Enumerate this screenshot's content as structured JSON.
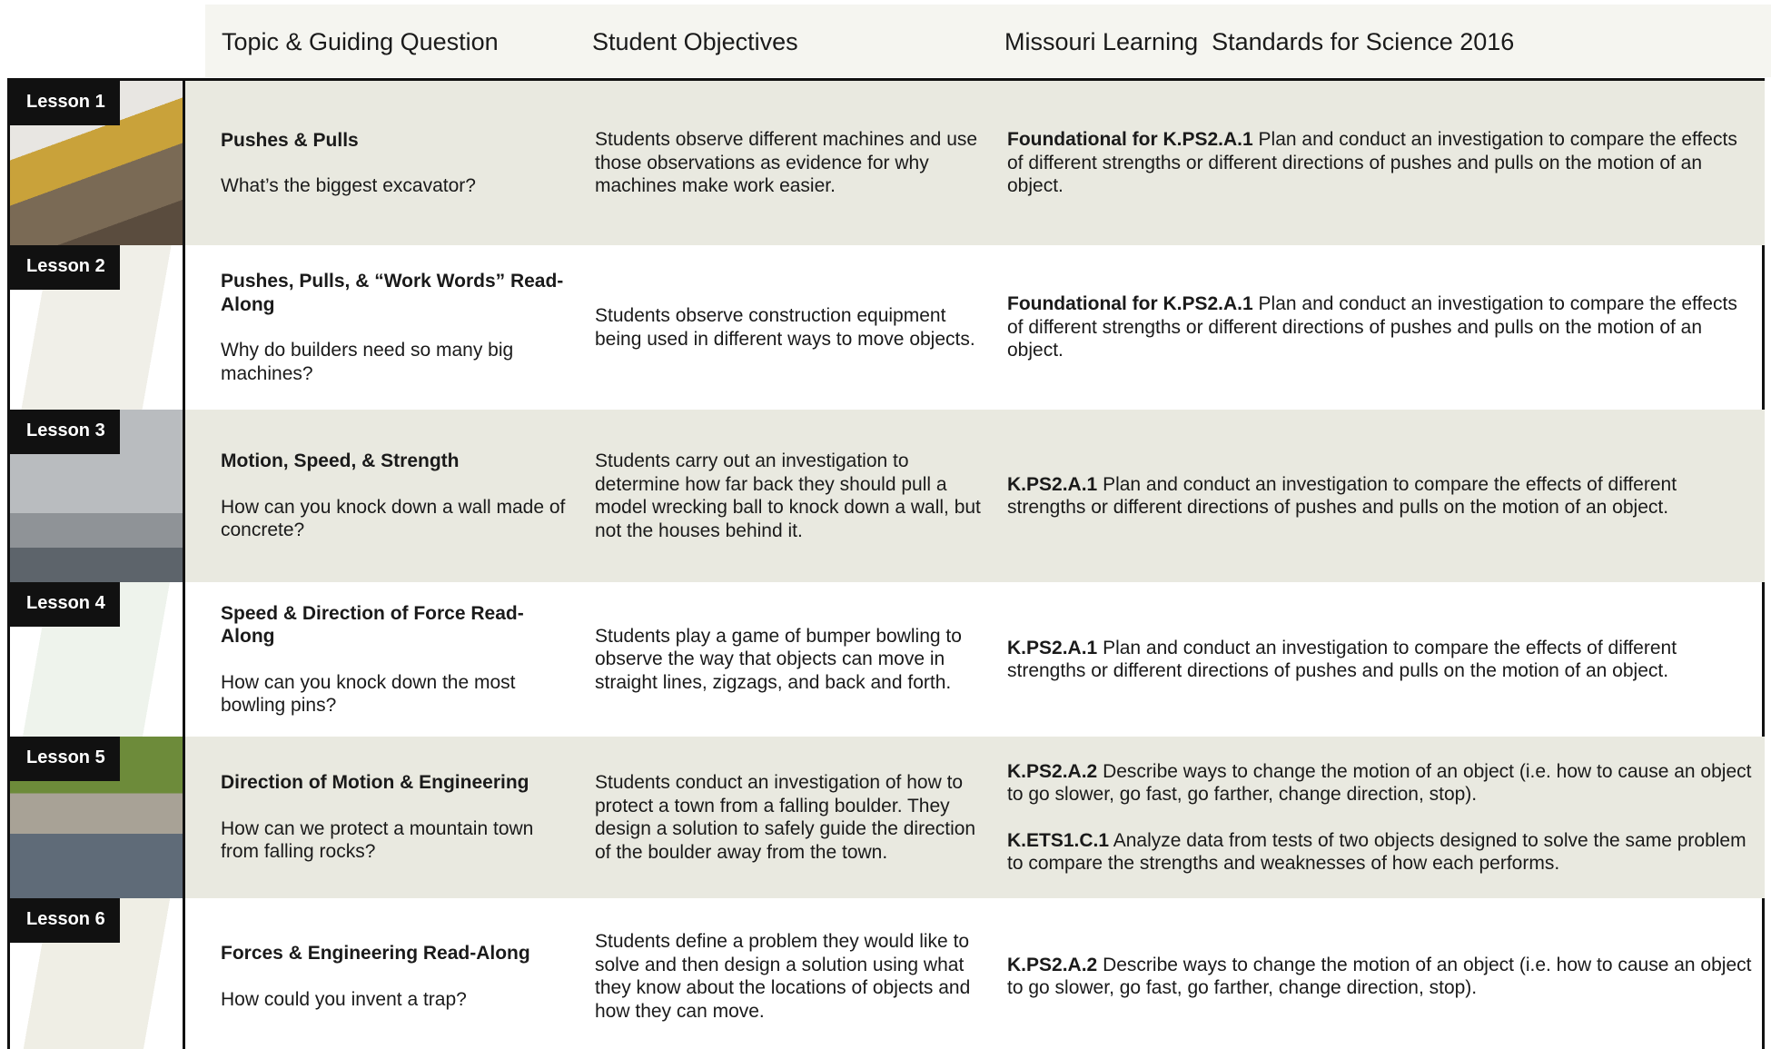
{
  "header": {
    "columns": [
      "Topic & Guiding Question",
      "Student Objectives",
      "Missouri Learning  Standards for Science 2016"
    ]
  },
  "rows": [
    {
      "lesson": "Lesson 1",
      "topic": "Pushes & Pulls",
      "question": "What’s the biggest excavator?",
      "objectives": "Students observe different machines and use those observations as evidence for why machines make work easier.",
      "standards": [
        {
          "code": "Foundational for K.PS2.A.1",
          "text": "Plan and conduct an investigation to compare the effects of different strengths or different directions of pushes and pulls on the motion of an object."
        }
      ]
    },
    {
      "lesson": "Lesson 2",
      "topic": "Pushes, Pulls, & “Work Words” Read-Along",
      "question": "Why do builders need so many big machines?",
      "objectives": "Students observe construction equipment being used in different ways to move objects.",
      "standards": [
        {
          "code": "Foundational for K.PS2.A.1",
          "text": "Plan and conduct an investigation to compare the effects of different strengths or different directions of pushes and pulls on the motion of an object."
        }
      ]
    },
    {
      "lesson": "Lesson 3",
      "topic": "Motion, Speed, & Strength",
      "question": "How can you knock down a wall made of concrete?",
      "objectives": "Students carry out an investigation to determine how far back they should pull a model wrecking ball to knock down a wall, but not the houses behind it.",
      "standards": [
        {
          "code": "K.PS2.A.1",
          "text": "Plan and conduct an investigation to compare the effects of different strengths or different directions of pushes and pulls on the motion of an object."
        }
      ]
    },
    {
      "lesson": "Lesson 4",
      "topic": "Speed & Direction of Force Read-Along",
      "question": "How can you knock down the most bowling pins?",
      "objectives": "Students play a game of bumper bowling to observe the way that objects can move in straight lines, zigzags, and back and forth.",
      "standards": [
        {
          "code": "K.PS2.A.1",
          "text": "Plan and conduct an investigation to compare the effects of different strengths or different directions of pushes and pulls on the motion of an object."
        }
      ]
    },
    {
      "lesson": "Lesson 5",
      "topic": "Direction of Motion & Engineering",
      "question": "How can we protect a mountain town from falling rocks?",
      "objectives": "Students conduct an investigation of how to protect a town from a falling boulder. They design a solution to safely guide the direction of the boulder away from the town.",
      "standards": [
        {
          "code": "K.PS2.A.2",
          "text": "Describe ways to change the motion of an object (i.e. how to cause an object to go slower, go fast, go farther, change direction, stop)."
        },
        {
          "code": "K.ETS1.C.1",
          "text": "Analyze data from tests of two objects designed to solve the same problem to compare the strengths and weaknesses of how each performs."
        }
      ]
    },
    {
      "lesson": "Lesson 6",
      "topic": "Forces & Engineering Read-Along",
      "question": "How could you invent a trap?",
      "objectives": "Students define a problem they would like to solve and then design a solution using what they know about the locations of objects and how they can move.",
      "standards": [
        {
          "code": "K.PS2.A.2",
          "text": "Describe ways to change the motion of an object (i.e. how to cause an object to go slower, go fast, go farther, change direction, stop)."
        }
      ]
    }
  ]
}
